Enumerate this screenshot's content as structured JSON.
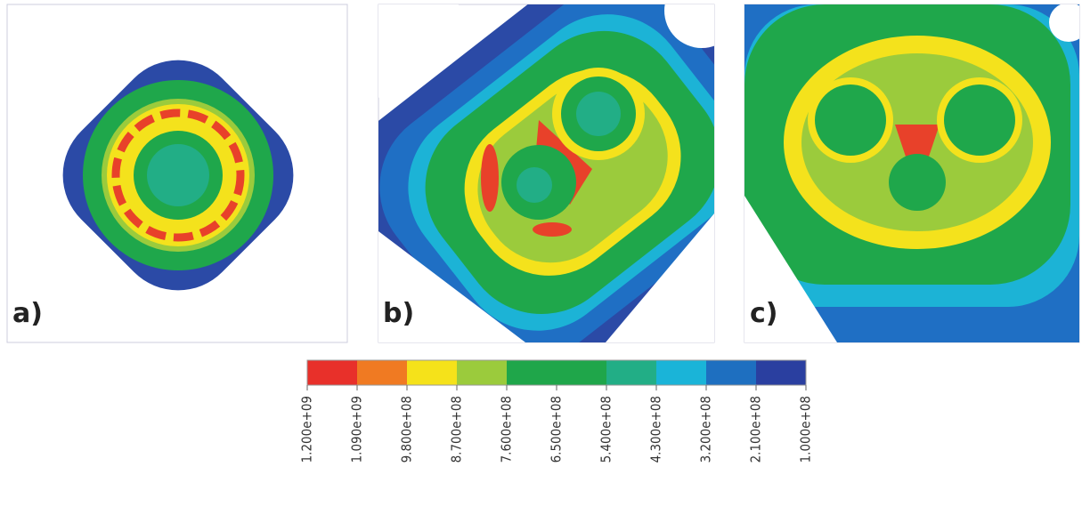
{
  "panels": [
    {
      "label": "a)"
    },
    {
      "label": "b)"
    },
    {
      "label": "c)"
    }
  ],
  "colorbar": {
    "ticks": [
      "1.200e+09",
      "1.090e+09",
      "9.800e+08",
      "8.700e+08",
      "7.600e+08",
      "6.500e+08",
      "5.400e+08",
      "4.300e+08",
      "3.200e+08",
      "2.100e+08",
      "1.000e+08"
    ]
  }
}
